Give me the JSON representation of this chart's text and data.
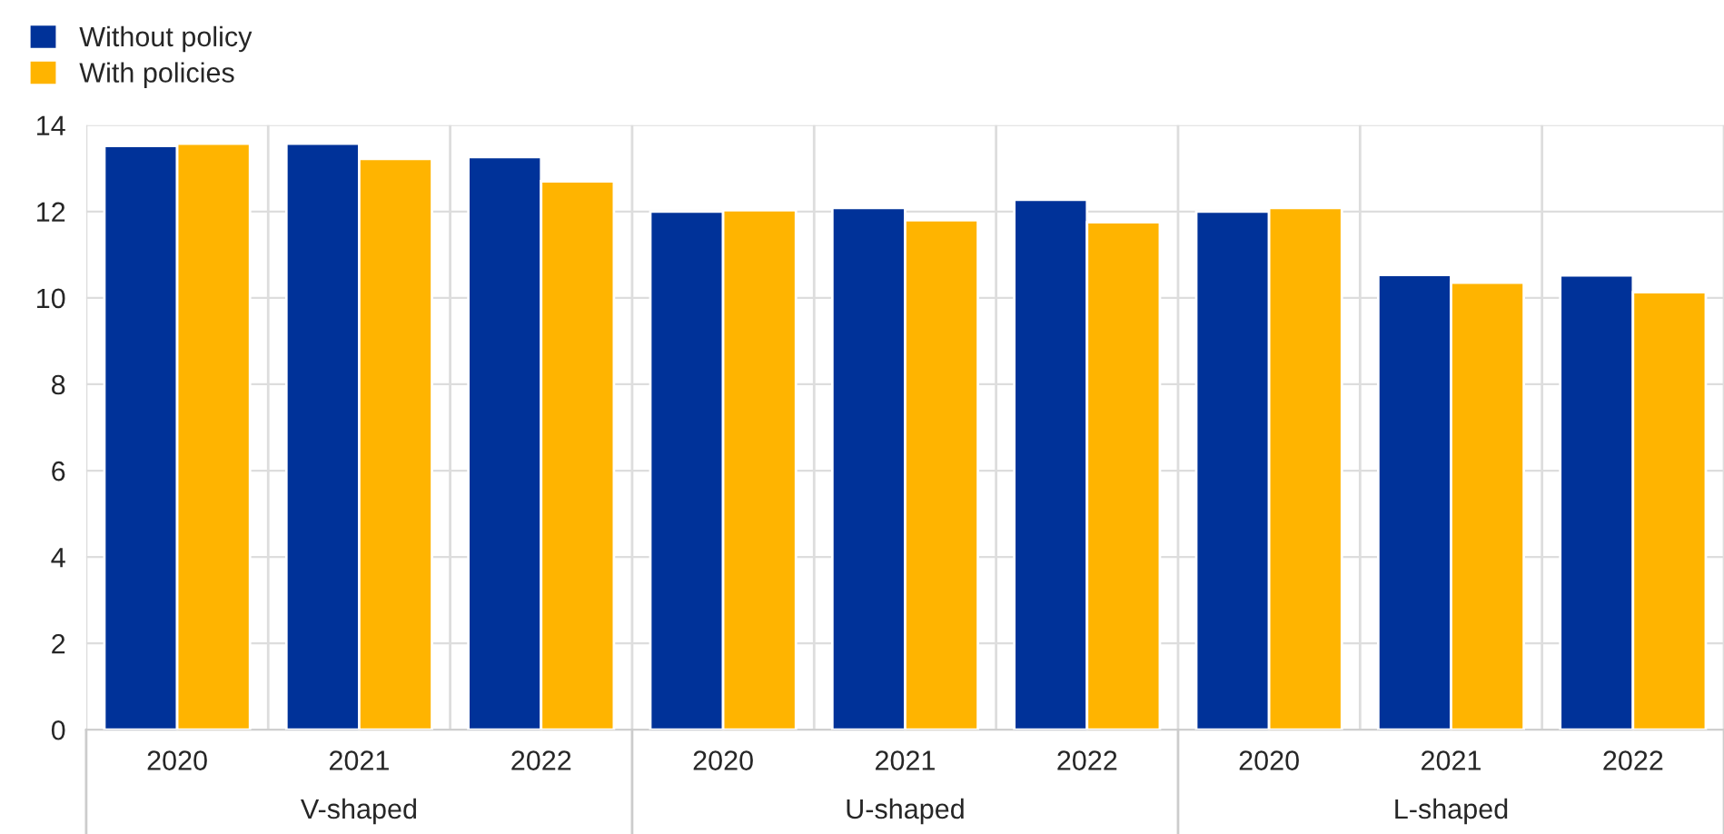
{
  "chart_data": {
    "type": "bar",
    "categories": [
      "2020",
      "2021",
      "2022",
      "2020",
      "2021",
      "2022",
      "2020",
      "2021",
      "2022"
    ],
    "annotations": [
      "V-shaped",
      "U-shaped",
      "L-shaped"
    ],
    "series": [
      {
        "name": "Without policy",
        "color": "#003299",
        "values": [
          13.52,
          13.57,
          13.26,
          12.0,
          12.08,
          12.27,
          12.0,
          10.53,
          10.52
        ]
      },
      {
        "name": "With policies",
        "color": "#ffb400",
        "values": [
          13.57,
          13.22,
          12.7,
          12.03,
          11.8,
          11.75,
          12.08,
          10.35,
          10.13
        ]
      }
    ],
    "ylim": [
      0,
      14
    ],
    "yticks": [
      0,
      2,
      4,
      6,
      8,
      10,
      12,
      14
    ],
    "grid": true,
    "legend": "top left"
  }
}
